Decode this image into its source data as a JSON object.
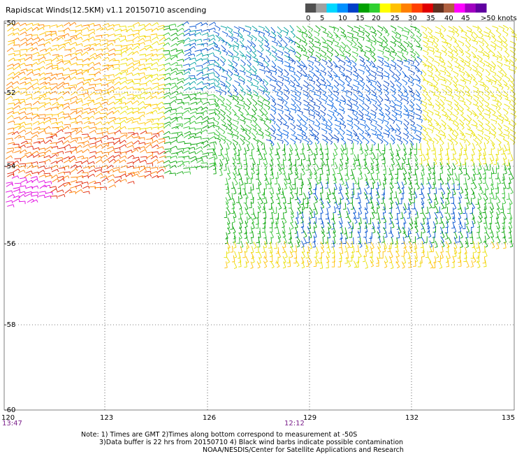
{
  "title": "Rapidscat Winds(12.5KM) v1.1 20150710 ascending",
  "legend": {
    "labels": [
      "0",
      "5",
      "10",
      "15",
      "20",
      "25",
      "30",
      "35",
      "40",
      "45",
      ">50 knots"
    ],
    "colors": [
      "#505050",
      "#a0a0a0",
      "#00d8ff",
      "#0090ff",
      "#0040c8",
      "#00a000",
      "#30d030",
      "#ffff00",
      "#ffc000",
      "#ff8000",
      "#ff4000",
      "#e00000",
      "#603020",
      "#b06040",
      "#ff00ff",
      "#a000c0",
      "#6000a0"
    ]
  },
  "axes": {
    "lon_labels": [
      "120",
      "123",
      "126",
      "129",
      "132",
      "135"
    ],
    "lat_labels": [
      "-50",
      "-52",
      "-54",
      "-56",
      "-58",
      "-60"
    ]
  },
  "times": {
    "left": "13:47",
    "center": "12:12"
  },
  "notes": {
    "line1": "Note: 1) Times are GMT 2)Times along bottom correspond to measurement at -50S",
    "line2": "3)Data buffer is 22 hrs from 20150710 4) Black wind barbs indicate possible contamination",
    "line3": "NOAA/NESDIS/Center for Satellite Applications and Research"
  }
}
